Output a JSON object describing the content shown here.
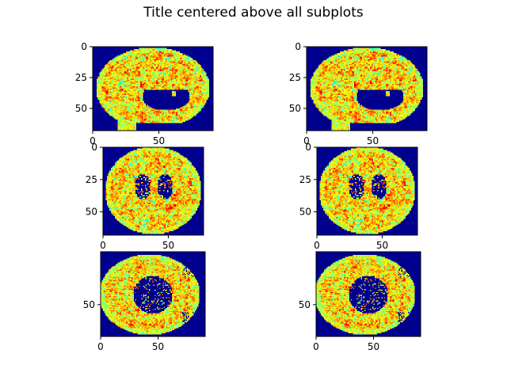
{
  "figure": {
    "title": "Title centered above all subplots"
  },
  "colormap": "jet",
  "chart_data": [
    {
      "type": "heatmap",
      "view": "sagittal",
      "row": 0,
      "col": 0,
      "xlim": [
        0,
        91
      ],
      "ylim": [
        68,
        0
      ],
      "xticks": [
        0,
        50
      ],
      "yticks": [
        0,
        25,
        50
      ]
    },
    {
      "type": "heatmap",
      "view": "sagittal",
      "row": 0,
      "col": 1,
      "xlim": [
        0,
        91
      ],
      "ylim": [
        68,
        0
      ],
      "xticks": [
        0,
        50
      ],
      "yticks": [
        0,
        25,
        50
      ]
    },
    {
      "type": "heatmap",
      "view": "coronal",
      "row": 1,
      "col": 0,
      "xlim": [
        0,
        77
      ],
      "ylim": [
        68,
        0
      ],
      "xticks": [
        0,
        50
      ],
      "yticks": [
        0,
        25,
        50
      ]
    },
    {
      "type": "heatmap",
      "view": "coronal",
      "row": 1,
      "col": 1,
      "xlim": [
        0,
        77
      ],
      "ylim": [
        68,
        0
      ],
      "xticks": [
        0,
        50
      ],
      "yticks": [
        0,
        25,
        50
      ]
    },
    {
      "type": "heatmap",
      "view": "axial",
      "row": 2,
      "col": 0,
      "xlim": [
        0,
        91
      ],
      "ylim": [
        80,
        0
      ],
      "xticks": [
        0,
        50
      ],
      "yticks": [
        50
      ]
    },
    {
      "type": "heatmap",
      "view": "axial",
      "row": 2,
      "col": 1,
      "xlim": [
        0,
        91
      ],
      "ylim": [
        80,
        0
      ],
      "xticks": [
        0,
        50
      ],
      "yticks": [
        50
      ]
    }
  ]
}
